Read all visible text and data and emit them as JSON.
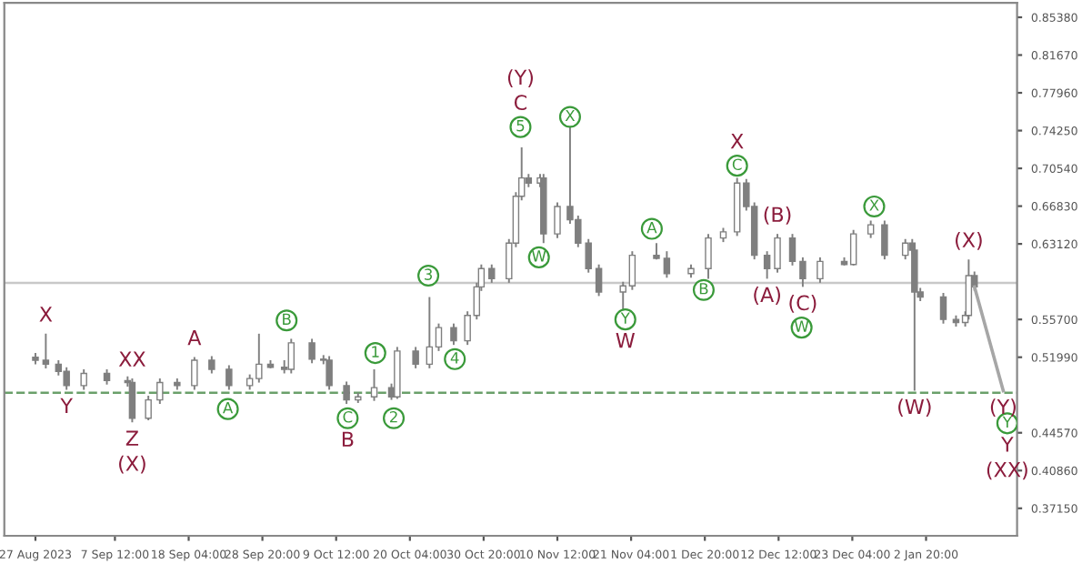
{
  "chart_data": {
    "type": "candlestick",
    "color": "#7f7f7f",
    "x": [
      "2023-08-27T00:00",
      "2023-08-28T12:00",
      "2023-08-30T08:00",
      "2023-08-31T12:00",
      "2023-09-03T00:00",
      "2023-09-06T08:00",
      "2023-09-09T08:00",
      "2023-09-10T00:00",
      "2023-09-12T08:00",
      "2023-09-14T00:00",
      "2023-09-16T12:00",
      "2023-09-19T00:00",
      "2023-09-21T12:00",
      "2023-09-24T00:00",
      "2023-09-27T00:00",
      "2023-09-28T08:00",
      "2023-09-30T00:00",
      "2023-10-02T00:00",
      "2023-10-03T00:00",
      "2023-10-06T00:00",
      "2023-10-07T16:00",
      "2023-10-08T12:00",
      "2023-10-11T00:00",
      "2023-10-12T16:00",
      "2023-10-15T00:00",
      "2023-10-17T12:00",
      "2023-10-18T08:00",
      "2023-10-21T00:00",
      "2023-10-23T00:00",
      "2023-10-24T08:00",
      "2023-10-26T12:00",
      "2023-10-28T12:00",
      "2023-10-29T20:00",
      "2023-10-30T12:00",
      "2023-11-01T00:00",
      "2023-11-03T12:00",
      "2023-11-04T12:00",
      "2023-11-05T08:00",
      "2023-11-06T08:00",
      "2023-11-08T00:00",
      "2023-11-08T12:00",
      "2023-11-10T12:00",
      "2023-11-12T08:00",
      "2023-11-13T12:00",
      "2023-11-15T00:00",
      "2023-11-16T12:00",
      "2023-11-20T00:00",
      "2023-11-21T08:00",
      "2023-11-24T20:00",
      "2023-11-26T08:00",
      "2023-11-29T20:00",
      "2023-12-02T08:00",
      "2023-12-04T12:00",
      "2023-12-06T12:00",
      "2023-12-07T20:00",
      "2023-12-09T00:00",
      "2023-12-10T20:00",
      "2023-12-12T08:00",
      "2023-12-14T12:00",
      "2023-12-16T00:00",
      "2023-12-18T12:00",
      "2023-12-22T00:00",
      "2023-12-23T08:00",
      "2023-12-25T20:00",
      "2023-12-27T20:00",
      "2023-12-30T20:00",
      "2023-12-31T20:00",
      "2024-01-01T04:00",
      "2024-01-02T00:00",
      "2024-01-05T08:00",
      "2024-01-07T04:00",
      "2024-01-08T12:00",
      "2024-01-09T00:00",
      "2024-01-09T20:00"
    ],
    "ohlc": [
      [
        0.52,
        0.524,
        0.513,
        0.517
      ],
      [
        0.517,
        0.543,
        0.509,
        0.513
      ],
      [
        0.513,
        0.517,
        0.502,
        0.506
      ],
      [
        0.506,
        0.51,
        0.488,
        0.492
      ],
      [
        0.492,
        0.508,
        0.488,
        0.504
      ],
      [
        0.504,
        0.508,
        0.493,
        0.497
      ],
      [
        0.497,
        0.501,
        0.491,
        0.495
      ],
      [
        0.495,
        0.499,
        0.456,
        0.46
      ],
      [
        0.46,
        0.482,
        0.458,
        0.478
      ],
      [
        0.478,
        0.499,
        0.474,
        0.495
      ],
      [
        0.495,
        0.499,
        0.488,
        0.492
      ],
      [
        0.492,
        0.52,
        0.488,
        0.517
      ],
      [
        0.517,
        0.521,
        0.504,
        0.508
      ],
      [
        0.508,
        0.512,
        0.488,
        0.492
      ],
      [
        0.492,
        0.503,
        0.488,
        0.499
      ],
      [
        0.499,
        0.543,
        0.495,
        0.513
      ],
      [
        0.513,
        0.517,
        0.509,
        0.51
      ],
      [
        0.51,
        0.517,
        0.504,
        0.508
      ],
      [
        0.508,
        0.538,
        0.504,
        0.534
      ],
      [
        0.534,
        0.538,
        0.514,
        0.518
      ],
      [
        0.518,
        0.522,
        0.513,
        0.517
      ],
      [
        0.517,
        0.521,
        0.488,
        0.492
      ],
      [
        0.492,
        0.496,
        0.474,
        0.478
      ],
      [
        0.478,
        0.485,
        0.475,
        0.481
      ],
      [
        0.481,
        0.508,
        0.477,
        0.49
      ],
      [
        0.49,
        0.494,
        0.478,
        0.481
      ],
      [
        0.481,
        0.53,
        0.479,
        0.526
      ],
      [
        0.526,
        0.53,
        0.509,
        0.513
      ],
      [
        0.513,
        0.579,
        0.509,
        0.53
      ],
      [
        0.53,
        0.553,
        0.526,
        0.549
      ],
      [
        0.549,
        0.553,
        0.532,
        0.536
      ],
      [
        0.536,
        0.565,
        0.532,
        0.561
      ],
      [
        0.561,
        0.593,
        0.557,
        0.589
      ],
      [
        0.589,
        0.611,
        0.585,
        0.607
      ],
      [
        0.607,
        0.611,
        0.593,
        0.597
      ],
      [
        0.597,
        0.636,
        0.593,
        0.632
      ],
      [
        0.632,
        0.682,
        0.628,
        0.678
      ],
      [
        0.678,
        0.726,
        0.674,
        0.696
      ],
      [
        0.696,
        0.7,
        0.687,
        0.691
      ],
      [
        0.691,
        0.7,
        0.687,
        0.696
      ],
      [
        0.696,
        0.7,
        0.632,
        0.641
      ],
      [
        0.641,
        0.672,
        0.637,
        0.668
      ],
      [
        0.668,
        0.758,
        0.651,
        0.655
      ],
      [
        0.655,
        0.659,
        0.628,
        0.632
      ],
      [
        0.632,
        0.636,
        0.603,
        0.607
      ],
      [
        0.607,
        0.611,
        0.58,
        0.584
      ],
      [
        0.584,
        0.594,
        0.566,
        0.59
      ],
      [
        0.59,
        0.624,
        0.586,
        0.62
      ],
      [
        0.62,
        0.632,
        0.616,
        0.617
      ],
      [
        0.617,
        0.624,
        0.598,
        0.602
      ],
      [
        0.602,
        0.611,
        0.598,
        0.607
      ],
      [
        0.607,
        0.641,
        0.597,
        0.637
      ],
      [
        0.637,
        0.647,
        0.633,
        0.643
      ],
      [
        0.643,
        0.696,
        0.639,
        0.691
      ],
      [
        0.691,
        0.695,
        0.664,
        0.668
      ],
      [
        0.668,
        0.672,
        0.616,
        0.62
      ],
      [
        0.62,
        0.624,
        0.597,
        0.607
      ],
      [
        0.607,
        0.641,
        0.603,
        0.637
      ],
      [
        0.637,
        0.641,
        0.61,
        0.614
      ],
      [
        0.614,
        0.618,
        0.589,
        0.597
      ],
      [
        0.597,
        0.618,
        0.593,
        0.614
      ],
      [
        0.614,
        0.618,
        0.61,
        0.611
      ],
      [
        0.611,
        0.645,
        0.61,
        0.641
      ],
      [
        0.641,
        0.654,
        0.637,
        0.65
      ],
      [
        0.65,
        0.654,
        0.616,
        0.62
      ],
      [
        0.62,
        0.636,
        0.616,
        0.632
      ],
      [
        0.632,
        0.636,
        0.621,
        0.625
      ],
      [
        0.625,
        0.629,
        0.487,
        0.584
      ],
      [
        0.584,
        0.588,
        0.575,
        0.579
      ],
      [
        0.579,
        0.583,
        0.553,
        0.557
      ],
      [
        0.557,
        0.561,
        0.55,
        0.554
      ],
      [
        0.554,
        0.565,
        0.55,
        0.561
      ],
      [
        0.561,
        0.616,
        0.557,
        0.6
      ],
      [
        0.6,
        0.604,
        0.585,
        0.589
      ]
    ],
    "series": [
      {
        "type": "line",
        "color": "#a6a6a6",
        "x": [
          "2024-01-09T20:00",
          "2024-01-14T00:00"
        ],
        "values": [
          0.589,
          0.487
        ]
      },
      {
        "type": "scatter",
        "marker": "circle",
        "color": "#3a9a3a",
        "x": [
          "2023-09-23T20:00",
          "2023-10-02T08:00",
          "2023-10-11T04:00",
          "2023-10-15T04:00",
          "2023-10-17T20:00",
          "2023-10-22T20:00",
          "2023-10-26T16:00",
          "2023-11-05T04:00",
          "2023-11-07T20:00",
          "2023-11-12T08:00",
          "2023-11-20T08:00",
          "2023-11-24T04:00",
          "2023-12-01T16:00",
          "2023-12-06T12:00",
          "2023-12-15T20:00",
          "2023-12-26T08:00",
          "2024-01-14T14:00"
        ],
        "values": [
          0.469,
          0.556,
          0.46,
          0.524,
          0.46,
          0.6,
          0.518,
          0.746,
          0.618,
          0.756,
          0.557,
          0.646,
          0.586,
          0.708,
          0.549,
          0.668,
          0.455
        ],
        "value_labels": [
          "A",
          "B",
          "C",
          null,
          null,
          null,
          null,
          null,
          "W",
          "X",
          "Y",
          "A",
          "B",
          "C",
          "W",
          "X",
          "Y"
        ]
      }
    ],
    "annotations": [
      {
        "text": "X",
        "x": "2023-08-28T12:00",
        "y": 0.543
      },
      {
        "text": "Y",
        "x": "2023-08-31T12:00",
        "y": 0.488
      },
      {
        "text": "XX",
        "x": "2023-09-10T00:00",
        "y": 0.499
      },
      {
        "text": "Z",
        "x": "2023-09-10T00:00",
        "y": 0.456
      },
      {
        "text": "(X)",
        "x": "2023-09-10T00:00",
        "y": 0.456
      },
      {
        "text": "A",
        "x": "2023-09-19T00:00",
        "y": 0.52
      },
      {
        "text": "B",
        "x": "2023-10-11T04:00",
        "y": 0.46
      },
      {
        "text": "1",
        "x": "2023-10-15T04:00",
        "y": 0.524
      },
      {
        "text": "2",
        "x": "2023-10-17T20:00",
        "y": 0.46
      },
      {
        "text": "3",
        "x": "2023-10-22T20:00",
        "y": 0.6
      },
      {
        "text": "4",
        "x": "2023-10-26T16:00",
        "y": 0.518
      },
      {
        "text": "5",
        "x": "2023-11-05T04:00",
        "y": 0.746
      },
      {
        "text": "C",
        "x": "2023-11-05T04:00",
        "y": 0.746
      },
      {
        "text": "(Y)",
        "x": "2023-11-05T04:00",
        "y": 0.746
      },
      {
        "text": "W",
        "x": "2023-11-20T08:00",
        "y": 0.557
      },
      {
        "text": "X",
        "x": "2023-12-06T12:00",
        "y": 0.708
      },
      {
        "text": "(A)",
        "x": "2023-12-10T20:00",
        "y": 0.597
      },
      {
        "text": "(B)",
        "x": "2023-12-12T08:00",
        "y": 0.641
      },
      {
        "text": "(C)",
        "x": "2023-12-16T00:00",
        "y": 0.589
      },
      {
        "text": "(W)",
        "x": "2024-01-01T04:00",
        "y": 0.487
      },
      {
        "text": "(X)",
        "x": "2024-01-09T00:00",
        "y": 0.616
      },
      {
        "text": "(Y)",
        "x": "2024-01-14T00:00",
        "y": 0.487
      },
      {
        "text": "Y",
        "x": "2024-01-14T14:00",
        "y": 0.455
      },
      {
        "text": "(XX)",
        "x": "2024-01-14T14:00",
        "y": 0.455
      }
    ],
    "xlim": [
      "2023-08-22T12:00",
      "2024-01-16T00:00"
    ],
    "xticks": [
      {
        "value": "2023-08-27T00:00",
        "label": "27 Aug 2023"
      },
      {
        "value": "2023-09-07T12:00",
        "label": "7 Sep 12:00"
      },
      {
        "value": "2023-09-18T04:00",
        "label": "18 Sep 04:00"
      },
      {
        "value": "2023-09-28T20:00",
        "label": "28 Sep 20:00"
      },
      {
        "value": "2023-10-09T12:00",
        "label": "9 Oct 12:00"
      },
      {
        "value": "2023-10-20T04:00",
        "label": "20 Oct 04:00"
      },
      {
        "value": "2023-10-30T20:00",
        "label": "30 Oct 20:00"
      },
      {
        "value": "2023-11-10T12:00",
        "label": "10 Nov 12:00"
      },
      {
        "value": "2023-11-21T04:00",
        "label": "21 Nov 04:00"
      },
      {
        "value": "2023-12-01T20:00",
        "label": "1 Dec 20:00"
      },
      {
        "value": "2023-12-12T12:00",
        "label": "12 Dec 12:00"
      },
      {
        "value": "2023-12-23T04:00",
        "label": "23 Dec 04:00"
      },
      {
        "value": "2024-01-02T20:00",
        "label": "2 Jan 20:00"
      }
    ],
    "ylim": [
      0.3445,
      0.868
    ],
    "yticks": [
      {
        "value": 0.8538,
        "label": "0.85380"
      },
      {
        "value": 0.8167,
        "label": "0.81670"
      },
      {
        "value": 0.7796,
        "label": "0.77960"
      },
      {
        "value": 0.7425,
        "label": "0.74250"
      },
      {
        "value": 0.7054,
        "label": "0.70540"
      },
      {
        "value": 0.6683,
        "label": "0.66830"
      },
      {
        "value": 0.6312,
        "label": "0.63120"
      },
      {
        "value": 0.557,
        "label": "0.55700"
      },
      {
        "value": 0.5199,
        "label": "0.51990"
      },
      {
        "value": 0.4457,
        "label": "0.44570"
      },
      {
        "value": 0.4086,
        "label": "0.40860"
      },
      {
        "value": 0.3715,
        "label": "0.37150"
      }
    ],
    "ref_lines": [
      {
        "axis": "y",
        "value": 0.593,
        "color": "#c8c8c8",
        "line_style": "solid"
      },
      {
        "axis": "y",
        "value": 0.485,
        "color": "#6aa06a",
        "line_style": "dashed"
      }
    ],
    "grid": false,
    "legend": false
  }
}
